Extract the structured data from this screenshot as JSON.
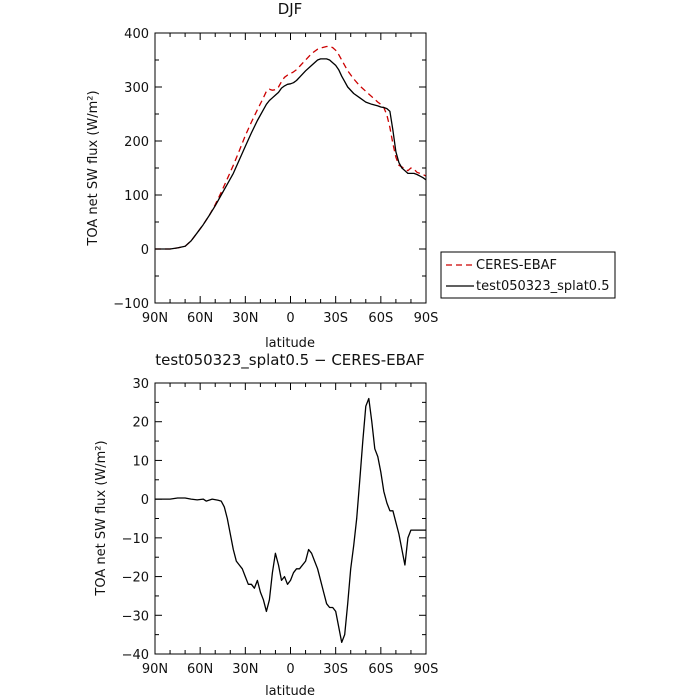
{
  "chart_data": [
    {
      "type": "line",
      "title": "DJF",
      "xlabel": "latitude",
      "ylabel": "TOA net SW flux (W/m²)",
      "xlim": [
        90,
        -90
      ],
      "ylim": [
        -100,
        400
      ],
      "xticks": [
        90,
        60,
        30,
        0,
        -30,
        -60,
        -90
      ],
      "xtick_labels": [
        "90N",
        "60N",
        "30N",
        "0",
        "30S",
        "60S",
        "90S"
      ],
      "yticks": [
        -100,
        0,
        100,
        200,
        300,
        400
      ],
      "ytick_labels": [
        "−100",
        "0",
        "100",
        "200",
        "300",
        "400"
      ],
      "legend": "right",
      "series": [
        {
          "name": "CERES-EBAF",
          "color": "#cc0000",
          "dash": "dashed",
          "x": [
            90,
            80,
            75,
            70,
            66,
            62,
            58,
            54,
            50,
            46,
            42,
            38,
            34,
            30,
            26,
            22,
            18,
            16,
            14,
            12,
            10,
            8,
            6,
            4,
            2,
            0,
            -2,
            -4,
            -6,
            -10,
            -14,
            -18,
            -20,
            -24,
            -26,
            -28,
            -30,
            -32,
            -34,
            -36,
            -38,
            -42,
            -46,
            -50,
            -54,
            -58,
            -60,
            -62,
            -64,
            -66,
            -68,
            -70,
            -72,
            -74,
            -76,
            -78,
            -80,
            -82,
            -84,
            -86,
            -88,
            -90
          ],
          "y": [
            0,
            0,
            2,
            5,
            15,
            30,
            45,
            62,
            82,
            105,
            130,
            155,
            182,
            210,
            235,
            258,
            280,
            292,
            296,
            294,
            295,
            300,
            310,
            318,
            322,
            325,
            328,
            332,
            338,
            350,
            362,
            370,
            372,
            375,
            375,
            373,
            368,
            360,
            350,
            340,
            330,
            315,
            302,
            292,
            282,
            272,
            268,
            262,
            248,
            225,
            195,
            170,
            155,
            152,
            148,
            145,
            150,
            148,
            142,
            140,
            138,
            135
          ]
        },
        {
          "name": "test050323_splat0.5",
          "color": "#000000",
          "dash": "solid",
          "x": [
            90,
            80,
            75,
            70,
            66,
            62,
            58,
            54,
            50,
            46,
            42,
            38,
            34,
            30,
            26,
            22,
            18,
            16,
            14,
            12,
            10,
            8,
            6,
            4,
            2,
            0,
            -2,
            -4,
            -6,
            -10,
            -14,
            -18,
            -20,
            -24,
            -26,
            -28,
            -30,
            -32,
            -34,
            -36,
            -38,
            -42,
            -46,
            -50,
            -54,
            -58,
            -60,
            -62,
            -64,
            -66,
            -68,
            -70,
            -72,
            -74,
            -76,
            -78,
            -80,
            -82,
            -84,
            -86,
            -88,
            -90
          ],
          "y": [
            0,
            0,
            2,
            5,
            15,
            30,
            45,
            62,
            80,
            100,
            120,
            140,
            165,
            190,
            215,
            238,
            258,
            268,
            275,
            280,
            285,
            290,
            298,
            302,
            305,
            306,
            308,
            312,
            318,
            330,
            340,
            350,
            352,
            352,
            350,
            345,
            340,
            332,
            320,
            310,
            300,
            288,
            280,
            272,
            268,
            265,
            263,
            262,
            260,
            255,
            220,
            180,
            160,
            150,
            145,
            140,
            140,
            140,
            138,
            135,
            132,
            128
          ]
        }
      ]
    },
    {
      "type": "line",
      "title": "test050323_splat0.5 − CERES-EBAF",
      "xlabel": "latitude",
      "ylabel": "TOA net SW flux (W/m²)",
      "xlim": [
        90,
        -90
      ],
      "ylim": [
        -40,
        30
      ],
      "xticks": [
        90,
        60,
        30,
        0,
        -30,
        -60,
        -90
      ],
      "xtick_labels": [
        "90N",
        "60N",
        "30N",
        "0",
        "30S",
        "60S",
        "90S"
      ],
      "yticks": [
        -40,
        -30,
        -20,
        -10,
        0,
        10,
        20,
        30
      ],
      "ytick_labels": [
        "−40",
        "−30",
        "−20",
        "−10",
        "0",
        "10",
        "20",
        "30"
      ],
      "series": [
        {
          "color": "#000000",
          "dash": "solid",
          "x": [
            90,
            80,
            75,
            70,
            66,
            62,
            58,
            56,
            52,
            48,
            46,
            44,
            42,
            40,
            38,
            36,
            34,
            32,
            30,
            28,
            26,
            24,
            22,
            20,
            18,
            16,
            14,
            12,
            10,
            8,
            6,
            4,
            2,
            0,
            -2,
            -4,
            -6,
            -10,
            -12,
            -14,
            -16,
            -18,
            -20,
            -22,
            -24,
            -26,
            -28,
            -30,
            -32,
            -34,
            -36,
            -38,
            -40,
            -42,
            -44,
            -46,
            -48,
            -50,
            -52,
            -54,
            -56,
            -58,
            -60,
            -62,
            -64,
            -66,
            -68,
            -70,
            -72,
            -74,
            -76,
            -78,
            -80,
            -82,
            -84,
            -86,
            -88,
            -90
          ],
          "y": [
            0,
            0,
            0.3,
            0.3,
            0,
            -0.2,
            0,
            -0.5,
            0,
            -0.3,
            -0.5,
            -2,
            -5,
            -9,
            -13,
            -16,
            -17,
            -18,
            -20,
            -22,
            -22,
            -23,
            -21,
            -24,
            -26,
            -29,
            -26,
            -19,
            -14,
            -17,
            -21,
            -20,
            -22,
            -21,
            -19,
            -18,
            -18,
            -16,
            -13,
            -14,
            -16,
            -18,
            -21,
            -24,
            -27,
            -28,
            -28,
            -29,
            -33,
            -37,
            -35,
            -27,
            -18,
            -12,
            -5,
            5,
            15,
            24,
            26,
            20,
            13,
            11,
            7,
            2,
            -1,
            -3,
            -3,
            -6,
            -9,
            -13,
            -17,
            -10,
            -8,
            -8,
            -8,
            -8,
            -8,
            -8
          ]
        }
      ]
    }
  ]
}
